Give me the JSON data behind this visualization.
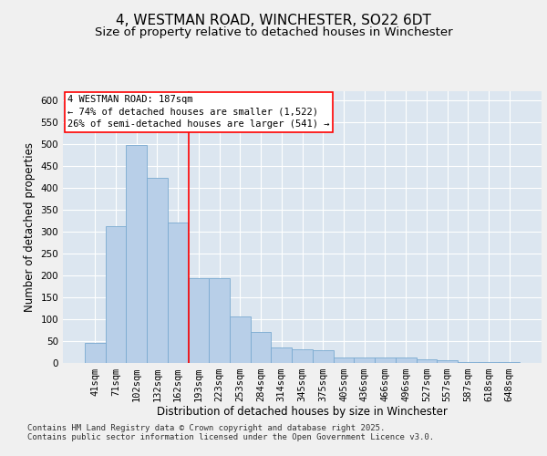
{
  "title_line1": "4, WESTMAN ROAD, WINCHESTER, SO22 6DT",
  "title_line2": "Size of property relative to detached houses in Winchester",
  "xlabel": "Distribution of detached houses by size in Winchester",
  "ylabel": "Number of detached properties",
  "categories": [
    "41sqm",
    "71sqm",
    "102sqm",
    "132sqm",
    "162sqm",
    "193sqm",
    "223sqm",
    "253sqm",
    "284sqm",
    "314sqm",
    "345sqm",
    "375sqm",
    "405sqm",
    "436sqm",
    "466sqm",
    "496sqm",
    "527sqm",
    "557sqm",
    "587sqm",
    "618sqm",
    "648sqm"
  ],
  "values": [
    45,
    312,
    497,
    422,
    320,
    193,
    193,
    105,
    70,
    35,
    30,
    29,
    12,
    11,
    12,
    12,
    7,
    5,
    2,
    1,
    2
  ],
  "bar_color": "#b8cfe8",
  "bar_edge_color": "#7aaad0",
  "bg_color": "#dce6f0",
  "grid_color": "#ffffff",
  "annotation_box_text": "4 WESTMAN ROAD: 187sqm\n← 74% of detached houses are smaller (1,522)\n26% of semi-detached houses are larger (541) →",
  "vline_bin_index": 4,
  "footer_line1": "Contains HM Land Registry data © Crown copyright and database right 2025.",
  "footer_line2": "Contains public sector information licensed under the Open Government Licence v3.0.",
  "ylim": [
    0,
    620
  ],
  "yticks": [
    0,
    50,
    100,
    150,
    200,
    250,
    300,
    350,
    400,
    450,
    500,
    550,
    600
  ],
  "title_fontsize": 11,
  "subtitle_fontsize": 9.5,
  "axis_label_fontsize": 8.5,
  "tick_fontsize": 7.5,
  "annotation_fontsize": 7.5,
  "footer_fontsize": 6.5
}
